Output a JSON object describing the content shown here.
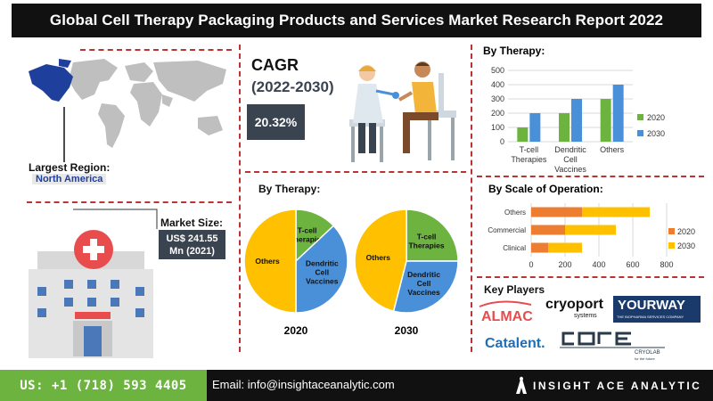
{
  "header": {
    "title": "Global Cell Therapy Packaging Products and Services Market Research Report 2022"
  },
  "region": {
    "label": "Largest Region:",
    "value": "North America"
  },
  "cagr": {
    "label": "CAGR",
    "period": "(2022-2030)",
    "value": "20.32%"
  },
  "market_size": {
    "label": "Market Size:",
    "value_line1": "US$ 241.55",
    "value_line2": "Mn (2021)"
  },
  "pies_title": "By Therapy:",
  "key_players": {
    "label": "Key Players",
    "logos": [
      "ALMAC",
      "cryoport",
      "systems",
      "YOURWAY",
      "THE BIOPHARMA SERVICES COMPANY",
      "Catalent.",
      "CRYOLAB",
      "for the future"
    ]
  },
  "footer": {
    "phone": "US: +1 (718) 593 4405",
    "email": "Email: info@insightaceanalytic.com",
    "brand": "INSIGHT ACE ANALYTIC"
  },
  "colors": {
    "series_2020": "#6cb33f",
    "series_2030": "#4a90d9",
    "bar_2020": "#ed7d31",
    "bar_2030": "#ffc000",
    "pie_others": "#ffc000",
    "pie_tcell": "#6cb33f",
    "pie_dendritic": "#4a90d9",
    "header_bg": "#111111",
    "accent_red": "#e84c4c"
  },
  "chart_data": [
    {
      "type": "bar",
      "title": "By Therapy:",
      "categories": [
        "T-cell Therapies",
        "Dendritic Cell Vaccines",
        "Others"
      ],
      "category_lines": [
        [
          "T-cell",
          "Therapies"
        ],
        [
          "Dendritic",
          "Cell",
          "Vaccines"
        ],
        [
          "Others"
        ]
      ],
      "series": [
        {
          "name": "2020",
          "values": [
            100,
            200,
            300
          ]
        },
        {
          "name": "2030",
          "values": [
            200,
            300,
            400
          ]
        }
      ],
      "yticks": [
        "0",
        "100",
        "200",
        "300",
        "400",
        "500"
      ],
      "ylim": [
        0,
        500
      ],
      "grid": true,
      "legend": "right"
    },
    {
      "type": "bar",
      "orientation": "horizontal",
      "stacked": true,
      "title": "By Scale of Operation:",
      "categories": [
        "Others",
        "Commercial",
        "Clinical"
      ],
      "series": [
        {
          "name": "2020",
          "values": [
            300,
            200,
            100
          ]
        },
        {
          "name": "2030",
          "values": [
            400,
            300,
            200
          ]
        }
      ],
      "xticks": [
        "0",
        "200",
        "400",
        "600",
        "800"
      ],
      "xlim": [
        0,
        800
      ],
      "grid": true,
      "legend": "right"
    },
    {
      "type": "pie",
      "title": "2020",
      "slices": [
        {
          "label": "T-cell Therapies",
          "label_lines": [
            "T-cell",
            "Therapies"
          ],
          "value": 13
        },
        {
          "label": "Dendritic Cell Vaccines",
          "label_lines": [
            "Dendritic",
            "Cell",
            "Vaccines"
          ],
          "value": 37
        },
        {
          "label": "Others",
          "label_lines": [
            "Others"
          ],
          "value": 50
        }
      ]
    },
    {
      "type": "pie",
      "title": "2030",
      "slices": [
        {
          "label": "T-cell Therapies",
          "label_lines": [
            "T-cell",
            "Therapies"
          ],
          "value": 25
        },
        {
          "label": "Dendritic Cell Vaccines",
          "label_lines": [
            "Dendritic",
            "Cell",
            "Vaccines"
          ],
          "value": 29
        },
        {
          "label": "Others",
          "label_lines": [
            "Others"
          ],
          "value": 46
        }
      ]
    }
  ]
}
